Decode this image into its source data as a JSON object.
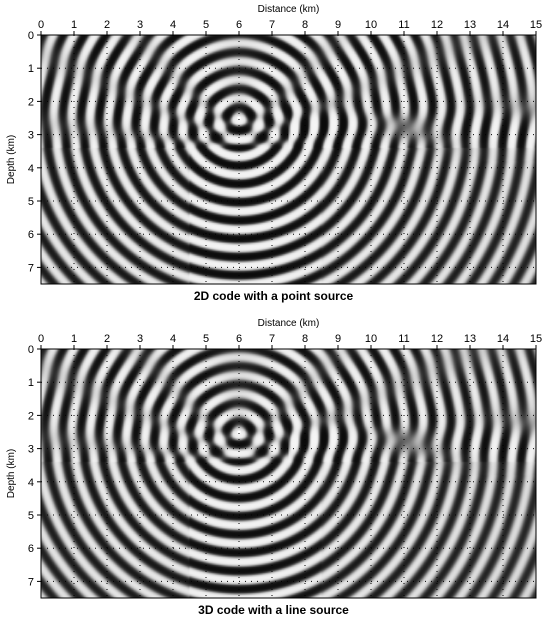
{
  "chart_data": [
    {
      "type": "heatmap",
      "title": "2D code with a point source",
      "xlabel": "Distance (km)",
      "ylabel": "Depth (km)",
      "xlim": [
        0,
        15
      ],
      "ylim": [
        0,
        7.5
      ],
      "x_ticks": [
        0,
        1,
        2,
        3,
        4,
        5,
        6,
        7,
        8,
        9,
        10,
        11,
        12,
        13,
        14,
        15
      ],
      "y_ticks": [
        0,
        1,
        2,
        3,
        4,
        5,
        6,
        7
      ],
      "y_inverted": true,
      "colormap": "grayscale",
      "grid": "dotted",
      "source": {
        "x": 6.0,
        "z": 2.5
      }
    },
    {
      "type": "heatmap",
      "title": "3D code with a line source",
      "xlabel": "Distance (km)",
      "ylabel": "Depth (km)",
      "xlim": [
        0,
        15
      ],
      "ylim": [
        0,
        7.5
      ],
      "x_ticks": [
        0,
        1,
        2,
        3,
        4,
        5,
        6,
        7,
        8,
        9,
        10,
        11,
        12,
        13,
        14,
        15
      ],
      "y_ticks": [
        0,
        1,
        2,
        3,
        4,
        5,
        6,
        7
      ],
      "y_inverted": true,
      "colormap": "grayscale",
      "grid": "dotted",
      "source": {
        "x": 6.0,
        "z": 2.5
      }
    }
  ]
}
